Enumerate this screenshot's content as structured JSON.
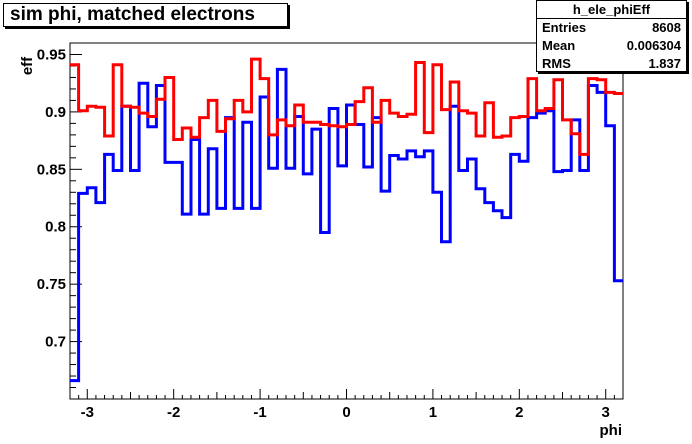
{
  "title": "sim phi, matched electrons",
  "stats": {
    "name": "h_ele_phiEff",
    "rows": [
      {
        "label": "Entries",
        "value": "8608"
      },
      {
        "label": "Mean",
        "value": "0.006304"
      },
      {
        "label": "RMS",
        "value": "1.837"
      }
    ]
  },
  "chart_data": {
    "type": "line",
    "xlabel": "phi",
    "ylabel": "eff",
    "xlim": [
      -3.2,
      3.2
    ],
    "ylim": [
      0.65,
      0.96
    ],
    "xticks": [
      "-3",
      "-2",
      "-1",
      "0",
      "1",
      "2",
      "3"
    ],
    "yticks": [
      "0.7",
      "0.75",
      "0.8",
      "0.85",
      "0.9",
      "0.95"
    ],
    "grid": false,
    "series": [
      {
        "color": "#0000ff",
        "x": [
          -3.2,
          -3.1,
          -3.0,
          -2.9,
          -2.8,
          -2.7,
          -2.6,
          -2.5,
          -2.4,
          -2.3,
          -2.2,
          -2.1,
          -2.0,
          -1.9,
          -1.8,
          -1.7,
          -1.6,
          -1.5,
          -1.4,
          -1.3,
          -1.2,
          -1.1,
          -1.0,
          -0.9,
          -0.8,
          -0.7,
          -0.6,
          -0.5,
          -0.4,
          -0.3,
          -0.2,
          -0.1,
          0.0,
          0.1,
          0.2,
          0.3,
          0.4,
          0.5,
          0.6,
          0.7,
          0.8,
          0.9,
          1.0,
          1.1,
          1.2,
          1.3,
          1.4,
          1.5,
          1.6,
          1.7,
          1.8,
          1.9,
          2.0,
          2.1,
          2.2,
          2.3,
          2.4,
          2.5,
          2.6,
          2.7,
          2.8,
          2.9,
          3.0,
          3.1,
          3.2
        ],
        "y": [
          0.666,
          0.829,
          0.834,
          0.821,
          0.863,
          0.849,
          0.905,
          0.849,
          0.925,
          0.887,
          0.923,
          0.856,
          0.856,
          0.811,
          0.876,
          0.811,
          0.868,
          0.816,
          0.895,
          0.816,
          0.891,
          0.816,
          0.913,
          0.851,
          0.937,
          0.851,
          0.896,
          0.846,
          0.885,
          0.795,
          0.903,
          0.853,
          0.906,
          0.889,
          0.852,
          0.895,
          0.831,
          0.862,
          0.859,
          0.866,
          0.861,
          0.866,
          0.83,
          0.787,
          0.905,
          0.849,
          0.859,
          0.833,
          0.821,
          0.814,
          0.808,
          0.863,
          0.857,
          0.895,
          0.899,
          0.901,
          0.848,
          0.849,
          0.893,
          0.849,
          0.923,
          0.917,
          0.888,
          0.753,
          0.753
        ]
      },
      {
        "color": "#ff0000",
        "x": [
          -3.2,
          -3.1,
          -3.0,
          -2.9,
          -2.8,
          -2.7,
          -2.6,
          -2.5,
          -2.4,
          -2.3,
          -2.2,
          -2.1,
          -2.0,
          -1.9,
          -1.8,
          -1.7,
          -1.6,
          -1.5,
          -1.4,
          -1.3,
          -1.2,
          -1.1,
          -1.0,
          -0.9,
          -0.8,
          -0.7,
          -0.6,
          -0.5,
          -0.4,
          -0.3,
          -0.2,
          -0.1,
          0.0,
          0.1,
          0.2,
          0.3,
          0.4,
          0.5,
          0.6,
          0.7,
          0.8,
          0.9,
          1.0,
          1.1,
          1.2,
          1.3,
          1.4,
          1.5,
          1.6,
          1.7,
          1.8,
          1.9,
          2.0,
          2.1,
          2.2,
          2.3,
          2.4,
          2.5,
          2.6,
          2.7,
          2.8,
          2.9,
          3.0,
          3.1,
          3.2
        ],
        "y": [
          0.941,
          0.901,
          0.905,
          0.904,
          0.879,
          0.941,
          0.905,
          0.904,
          0.899,
          0.896,
          0.911,
          0.93,
          0.876,
          0.886,
          0.878,
          0.895,
          0.91,
          0.883,
          0.894,
          0.91,
          0.9,
          0.946,
          0.929,
          0.88,
          0.893,
          0.888,
          0.906,
          0.891,
          0.891,
          0.889,
          0.888,
          0.887,
          0.889,
          0.909,
          0.921,
          0.891,
          0.91,
          0.899,
          0.896,
          0.898,
          0.943,
          0.882,
          0.941,
          0.902,
          0.926,
          0.901,
          0.899,
          0.879,
          0.908,
          0.878,
          0.879,
          0.895,
          0.896,
          0.929,
          0.901,
          0.903,
          0.928,
          0.893,
          0.881,
          0.863,
          0.929,
          0.928,
          0.917,
          0.916,
          0.916
        ]
      }
    ]
  }
}
